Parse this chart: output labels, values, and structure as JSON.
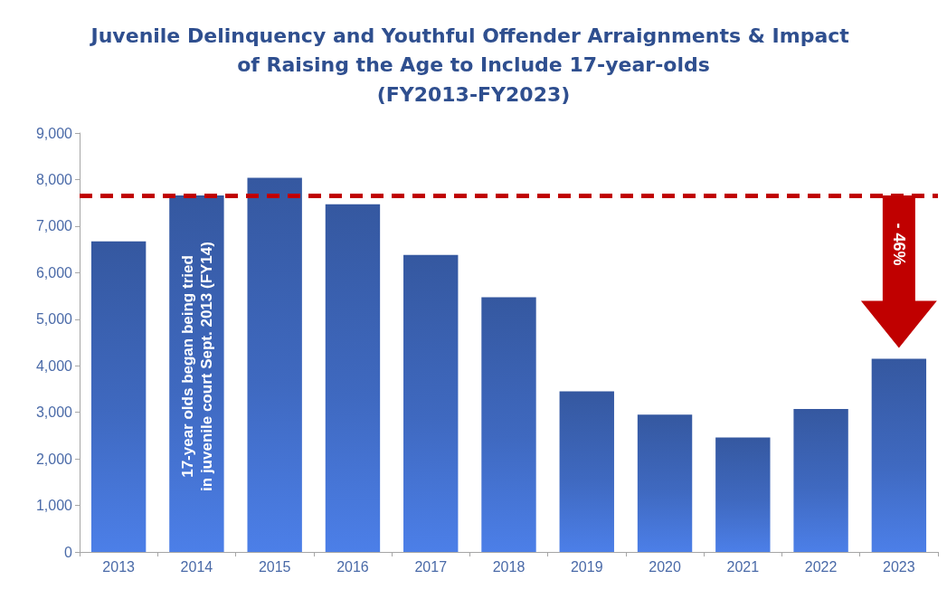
{
  "chart_data": {
    "type": "bar",
    "title": "Juvenile Delinquency and Youthful Offender Arraignments & Impact of Raising the Age to Include 17-year-olds",
    "subtitle": "(FY2013-FY2023)",
    "categories": [
      "2013",
      "2014",
      "2015",
      "2016",
      "2017",
      "2018",
      "2019",
      "2020",
      "2021",
      "2022",
      "2023"
    ],
    "values": [
      6670,
      7660,
      8040,
      7470,
      6380,
      5470,
      3450,
      2950,
      2460,
      3070,
      4150
    ],
    "color": "#3558a0",
    "ylim": [
      0,
      9000
    ],
    "yticks": [
      0,
      {
        "value": 1000,
        "label": "1,000"
      },
      {
        "value": 2000,
        "label": "2,000"
      },
      {
        "value": 3000,
        "label": "3,000"
      },
      {
        "value": 4000,
        "label": "4,000"
      },
      {
        "value": 5000,
        "label": "5,000"
      },
      {
        "value": 6000,
        "label": "6,000"
      },
      {
        "value": 7000,
        "label": "7,000"
      },
      {
        "value": 8000,
        "label": "8,000"
      },
      {
        "value": 9000,
        "label": "9,000"
      }
    ],
    "grid": false,
    "ref_lines": [
      {
        "axis": "y",
        "value": 7660,
        "label": null,
        "color": "#c00000",
        "line_style": "dashed"
      }
    ],
    "annotations": [
      "17-year olds began being tried in juvenile court Sept. 2013 (FY14)",
      "- 46%"
    ]
  }
}
